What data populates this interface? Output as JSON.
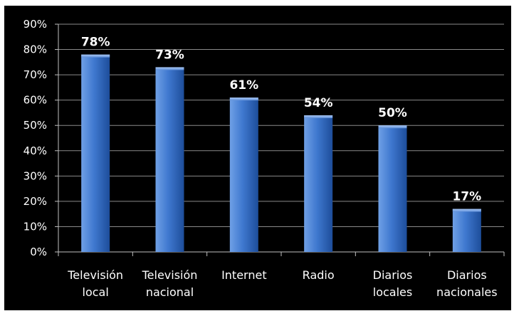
{
  "chart_data": {
    "type": "bar",
    "title": "",
    "xlabel": "",
    "ylabel": "",
    "categories": [
      [
        "Televisión",
        "local"
      ],
      [
        "Televisión",
        "nacional"
      ],
      [
        "Internet"
      ],
      [
        "Radio"
      ],
      [
        "Diarios",
        "locales"
      ],
      [
        "Diarios",
        "nacionales"
      ]
    ],
    "values": [
      78,
      73,
      61,
      54,
      50,
      17
    ],
    "data_labels": [
      "78%",
      "73%",
      "61%",
      "54%",
      "50%",
      "17%"
    ],
    "ylim": [
      0,
      90
    ],
    "y_ticks": [
      0,
      10,
      20,
      30,
      40,
      50,
      60,
      70,
      80,
      90
    ],
    "y_tick_labels": [
      "0%",
      "10%",
      "20%",
      "30%",
      "40%",
      "50%",
      "60%",
      "70%",
      "80%",
      "90%"
    ],
    "grid": true,
    "legend": "none",
    "colors": {
      "background": "#000000",
      "bar_light": "#6fa0e6",
      "bar_mid": "#3f78cf",
      "bar_dark": "#1d4d9a",
      "grid": "#8a8a8a",
      "axis": "#bfbfbf",
      "text": "#ffffff"
    }
  }
}
